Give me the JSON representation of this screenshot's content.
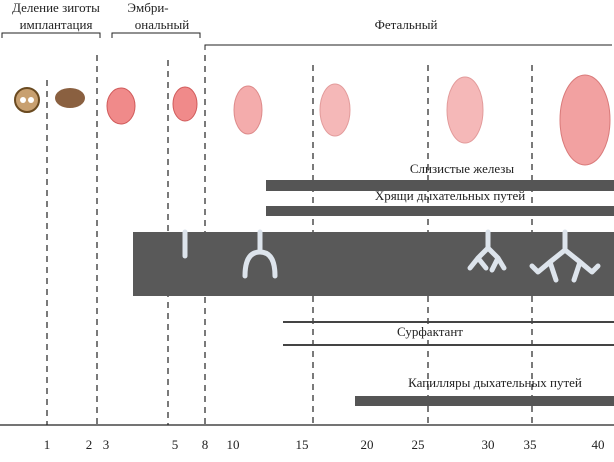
{
  "stages": [
    {
      "lines": [
        "Деление зиготы",
        "имплантация"
      ]
    },
    {
      "lines": [
        "Эмбри-",
        "ональный"
      ]
    },
    {
      "lines": [
        "Фетальный"
      ]
    }
  ],
  "tracks": [
    "Слизистые железы",
    "Хрящи дыхательных путей",
    "Сурфактант",
    "Капилляры дыхательных путей"
  ],
  "axis": {
    "ticks": [
      "1",
      "2",
      "3",
      "5",
      "8",
      "10",
      "15",
      "20",
      "25",
      "30",
      "35",
      "40"
    ]
  }
}
